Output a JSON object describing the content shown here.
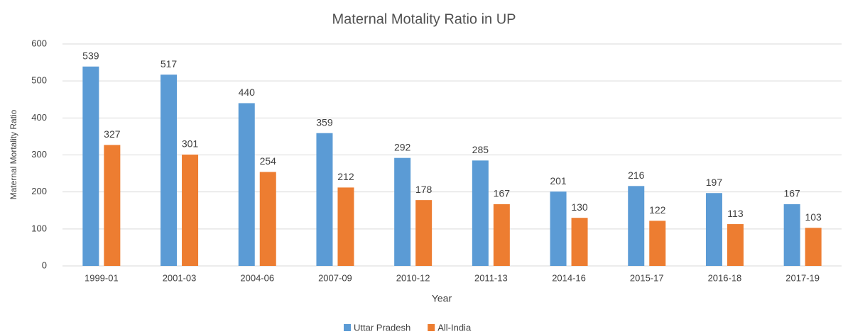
{
  "chart_data": {
    "type": "bar",
    "title": "Maternal Motality Ratio in UP",
    "x_label": "Year",
    "y_label": "Maternal Mortality Ratio",
    "categories": [
      "1999-01",
      "2001-03",
      "2004-06",
      "2007-09",
      "2010-12",
      "2011-13",
      "2014-16",
      "2015-17",
      "2016-18",
      "2017-19"
    ],
    "series": [
      {
        "name": "Uttar Pradesh",
        "color": "#5b9bd5",
        "values": [
          539,
          517,
          440,
          359,
          292,
          285,
          201,
          216,
          197,
          167
        ]
      },
      {
        "name": "All-India",
        "color": "#ed7d31",
        "values": [
          327,
          301,
          254,
          212,
          178,
          167,
          130,
          122,
          113,
          103
        ]
      }
    ],
    "ylim": [
      0,
      600
    ],
    "yticks": [
      0,
      100,
      200,
      300,
      400,
      500,
      600
    ],
    "grid": true,
    "legend": "bottom"
  }
}
